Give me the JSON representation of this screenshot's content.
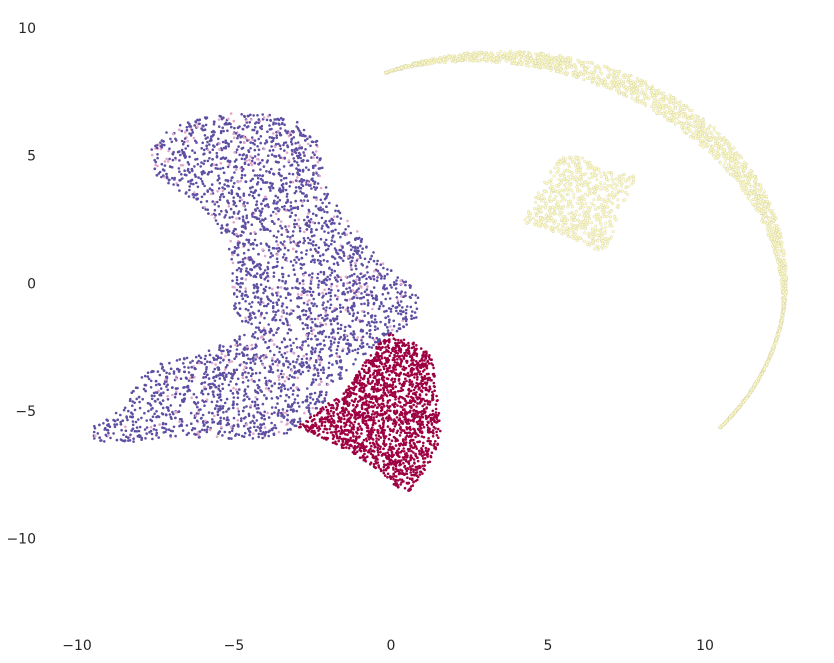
{
  "chart_data": {
    "type": "scatter",
    "title": "",
    "xlabel": "",
    "ylabel": "",
    "xlim": [
      -11,
      14
    ],
    "ylim": [
      -13.5,
      10.5
    ],
    "grid": false,
    "legend": "none",
    "x_ticks": [
      {
        "value": -10,
        "label": "−10"
      },
      {
        "value": -5,
        "label": "−5"
      },
      {
        "value": 0,
        "label": "0"
      },
      {
        "value": 5,
        "label": "5"
      },
      {
        "value": 10,
        "label": "10"
      }
    ],
    "y_ticks": [
      {
        "value": 10,
        "label": "10"
      },
      {
        "value": 5,
        "label": "5"
      },
      {
        "value": 0,
        "label": "0"
      },
      {
        "value": -5,
        "label": "−5"
      },
      {
        "value": -10,
        "label": "−10"
      }
    ],
    "series": [
      {
        "color": "#5e4fa2",
        "accent_color": "#e3a6c9",
        "regions": [
          {
            "outline": [
              [
                -7.8,
                4.5
              ],
              [
                -7.6,
                5.4
              ],
              [
                -7.0,
                6.1
              ],
              [
                -6.0,
                6.5
              ],
              [
                -4.8,
                6.7
              ],
              [
                -3.8,
                6.6
              ],
              [
                -2.9,
                6.3
              ],
              [
                -2.3,
                5.5
              ],
              [
                -2.2,
                4.6
              ],
              [
                -2.0,
                3.6
              ],
              [
                -1.4,
                2.6
              ],
              [
                -0.8,
                1.6
              ],
              [
                0.0,
                0.6
              ],
              [
                0.9,
                -0.4
              ],
              [
                0.8,
                -1.5
              ],
              [
                -0.3,
                -2.2
              ],
              [
                -1.3,
                -3.3
              ],
              [
                -2.0,
                -4.5
              ],
              [
                -2.8,
                -5.4
              ],
              [
                -3.3,
                -5.9
              ],
              [
                -4.2,
                -6.1
              ],
              [
                -5.3,
                -6.1
              ],
              [
                -6.8,
                -6.0
              ],
              [
                -8.2,
                -6.2
              ],
              [
                -9.4,
                -6.2
              ],
              [
                -9.6,
                -5.7
              ],
              [
                -9.1,
                -5.3
              ],
              [
                -8.5,
                -4.9
              ],
              [
                -8.1,
                -3.9
              ],
              [
                -7.6,
                -3.2
              ],
              [
                -6.8,
                -3.0
              ],
              [
                -6.0,
                -2.7
              ],
              [
                -5.2,
                -2.3
              ],
              [
                -4.6,
                -1.8
              ],
              [
                -5.0,
                -1.0
              ],
              [
                -5.1,
                0.3
              ],
              [
                -5.2,
                1.4
              ],
              [
                -5.6,
                2.4
              ],
              [
                -6.3,
                3.3
              ],
              [
                -7.1,
                3.9
              ]
            ],
            "count": 3600
          }
        ]
      },
      {
        "color": "#9e0142",
        "regions": [
          {
            "outline": [
              [
                -0.1,
                -1.9
              ],
              [
                0.7,
                -2.3
              ],
              [
                1.3,
                -2.8
              ],
              [
                1.4,
                -3.5
              ],
              [
                1.5,
                -4.6
              ],
              [
                1.6,
                -5.8
              ],
              [
                1.4,
                -6.7
              ],
              [
                1.0,
                -7.5
              ],
              [
                0.6,
                -8.2
              ],
              [
                0.2,
                -8.0
              ],
              [
                -0.4,
                -7.3
              ],
              [
                -1.3,
                -6.6
              ],
              [
                -2.3,
                -6.0
              ],
              [
                -3.0,
                -5.6
              ],
              [
                -2.5,
                -5.1
              ],
              [
                -1.5,
                -4.3
              ],
              [
                -0.9,
                -3.2
              ]
            ],
            "count": 1900
          }
        ]
      },
      {
        "color": "#ffffbf",
        "edge_color": "#d0c8b4",
        "regions": [
          {
            "outline": [
              [
                4.2,
                2.3
              ],
              [
                4.7,
                3.8
              ],
              [
                5.3,
                4.9
              ],
              [
                6.0,
                5.0
              ],
              [
                6.9,
                4.4
              ],
              [
                7.8,
                4.2
              ],
              [
                7.4,
                3.0
              ],
              [
                7.1,
                2.0
              ],
              [
                6.8,
                1.2
              ],
              [
                6.1,
                1.5
              ],
              [
                5.2,
                2.0
              ]
            ],
            "count": 650
          }
        ],
        "arc": {
          "center": [
            3.6,
            0.1
          ],
          "radius": 9.0,
          "angle_start_deg": 115,
          "angle_end_deg": -40,
          "thickness_min": 0.05,
          "thickness_max": 0.85,
          "count": 2200
        }
      }
    ]
  }
}
